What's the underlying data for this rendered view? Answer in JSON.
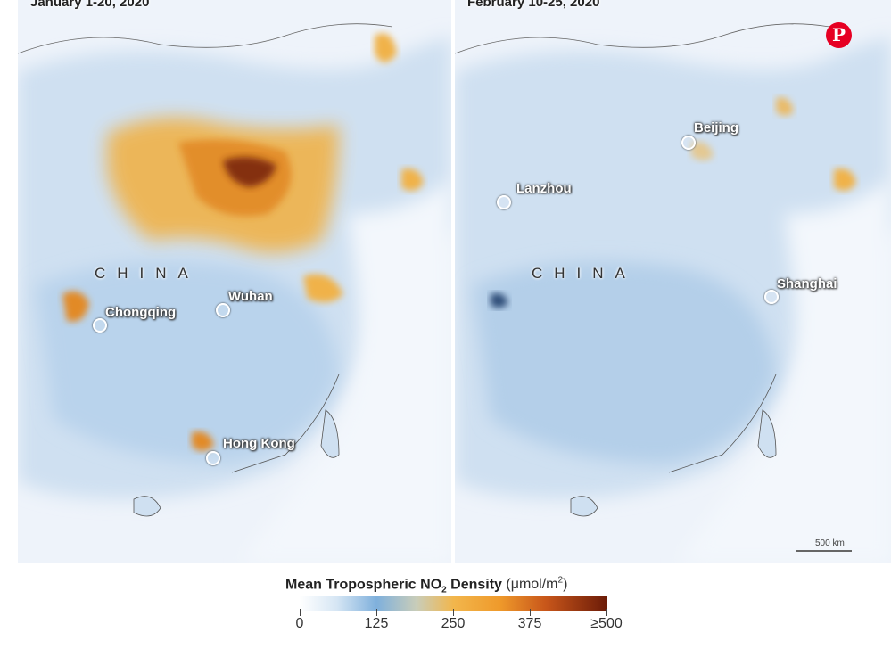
{
  "panels": {
    "left": {
      "title": "January 1-20, 2020",
      "country": "CHINA",
      "cities": [
        "Chongqing",
        "Wuhan",
        "Hong Kong"
      ]
    },
    "right": {
      "title": "February 10-25, 2020",
      "country": "CHINA",
      "cities": [
        "Beijing",
        "Lanzhou",
        "Shanghai"
      ]
    }
  },
  "scale": {
    "label": "500 km"
  },
  "legend": {
    "title_main": "Mean Tropospheric NO",
    "title_sub": "2",
    "title_rest": " Density",
    "unit_prefix": "(μmol/m",
    "unit_sup": "2",
    "unit_suffix": ")",
    "ticks": [
      "0",
      "125",
      "250",
      "375",
      "≥500"
    ],
    "colors": {
      "low": "#ffffff",
      "mid_low": "#7fb0dc",
      "mid": "#f2b64c",
      "high": "#c8561a",
      "max": "#6b1b08"
    }
  },
  "icons": {
    "share": "pinterest-icon"
  }
}
